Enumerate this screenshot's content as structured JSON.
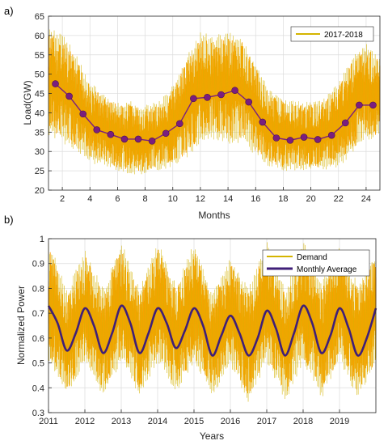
{
  "colors": {
    "signal": "#FF9E00",
    "signal_edge": "#D4B400",
    "average": "#7A1F7F",
    "average_b": "#3F1F78",
    "grid": "#DCDCDC",
    "axis": "#262626"
  },
  "chart_data": [
    {
      "type": "line",
      "panel_label": "a)",
      "xlabel": "Months",
      "ylabel": "Load(GW)",
      "xlim": [
        1,
        25
      ],
      "ylim": [
        20,
        65
      ],
      "xticks": [
        2,
        4,
        6,
        8,
        10,
        12,
        14,
        16,
        18,
        20,
        22,
        24
      ],
      "yticks": [
        20,
        25,
        30,
        35,
        40,
        45,
        50,
        55,
        60,
        65
      ],
      "grid": true,
      "legend": {
        "position": "top-right",
        "entries": [
          "2017-2018"
        ]
      },
      "series": [
        {
          "name": "2017-2018",
          "style": "band",
          "x": [
            1,
            2,
            3,
            4,
            5,
            6,
            7,
            8,
            9,
            10,
            11,
            12,
            13,
            14,
            15,
            16,
            17,
            18,
            19,
            20,
            21,
            22,
            23,
            24,
            25
          ],
          "low": [
            34,
            32,
            30,
            27,
            26,
            25,
            24,
            24,
            25,
            26,
            28,
            32,
            33,
            32,
            32,
            29,
            26,
            25,
            25,
            25,
            25,
            26,
            29,
            33,
            33
          ],
          "high": [
            62,
            61,
            55,
            48,
            45,
            43,
            43,
            42,
            43,
            47,
            55,
            61,
            60,
            61,
            60,
            53,
            46,
            44,
            43,
            43,
            44,
            48,
            55,
            58,
            55
          ]
        },
        {
          "name": "",
          "style": "markers",
          "x": [
            1.5,
            2.5,
            3.5,
            4.5,
            5.5,
            6.5,
            7.5,
            8.5,
            9.5,
            10.5,
            11.5,
            12.5,
            13.5,
            14.5,
            15.5,
            16.5,
            17.5,
            18.5,
            19.5,
            20.5,
            21.5,
            22.5,
            23.5,
            24.5
          ],
          "values": [
            47.5,
            44.3,
            39.7,
            35.6,
            34.4,
            33.2,
            33.2,
            32.7,
            34.7,
            37.2,
            43.7,
            44.0,
            44.7,
            45.8,
            42.8,
            37.6,
            33.5,
            32.9,
            33.7,
            33.1,
            34.2,
            37.4,
            42.0,
            42.0
          ]
        }
      ]
    },
    {
      "type": "line",
      "panel_label": "b)",
      "xlabel": "Years",
      "ylabel": "Normalized Power",
      "xlim": [
        2011,
        2020
      ],
      "ylim": [
        0.3,
        1
      ],
      "xticks": [
        2011,
        2012,
        2013,
        2014,
        2015,
        2016,
        2017,
        2018,
        2019
      ],
      "yticks": [
        0.3,
        0.4,
        0.5,
        0.6,
        0.7,
        0.8,
        0.9,
        1
      ],
      "grid": true,
      "legend": {
        "position": "top-right",
        "entries": [
          "Demand",
          "Monthly Average"
        ]
      },
      "series": [
        {
          "name": "Demand",
          "style": "band",
          "x": [
            2011.0,
            2011.5,
            2012.0,
            2012.5,
            2013.0,
            2013.5,
            2014.0,
            2014.5,
            2015.0,
            2015.5,
            2016.0,
            2016.5,
            2017.0,
            2017.5,
            2018.0,
            2018.5,
            2019.0,
            2019.5,
            2020.0
          ],
          "low": [
            0.5,
            0.36,
            0.5,
            0.36,
            0.5,
            0.37,
            0.5,
            0.38,
            0.5,
            0.36,
            0.49,
            0.34,
            0.5,
            0.34,
            0.5,
            0.35,
            0.5,
            0.36,
            0.48
          ],
          "high": [
            1.0,
            0.8,
            0.96,
            0.8,
            0.99,
            0.8,
            0.99,
            0.82,
            0.99,
            0.79,
            0.93,
            0.8,
            1.0,
            0.8,
            1.0,
            0.82,
            0.98,
            0.82,
            0.95
          ]
        },
        {
          "name": "Monthly Average",
          "style": "line",
          "x": [
            2011.0,
            2011.25,
            2011.5,
            2011.75,
            2012.0,
            2012.25,
            2012.5,
            2012.75,
            2013.0,
            2013.25,
            2013.5,
            2013.75,
            2014.0,
            2014.25,
            2014.5,
            2014.75,
            2015.0,
            2015.25,
            2015.5,
            2015.75,
            2016.0,
            2016.25,
            2016.5,
            2016.75,
            2017.0,
            2017.25,
            2017.5,
            2017.75,
            2018.0,
            2018.25,
            2018.5,
            2018.75,
            2019.0,
            2019.25,
            2019.5,
            2019.75,
            2020.0
          ],
          "values": [
            0.73,
            0.66,
            0.55,
            0.62,
            0.72,
            0.65,
            0.54,
            0.62,
            0.73,
            0.66,
            0.54,
            0.62,
            0.72,
            0.66,
            0.56,
            0.63,
            0.72,
            0.65,
            0.53,
            0.61,
            0.69,
            0.62,
            0.53,
            0.6,
            0.71,
            0.64,
            0.53,
            0.62,
            0.73,
            0.66,
            0.54,
            0.61,
            0.72,
            0.64,
            0.53,
            0.6,
            0.72
          ]
        }
      ]
    }
  ]
}
